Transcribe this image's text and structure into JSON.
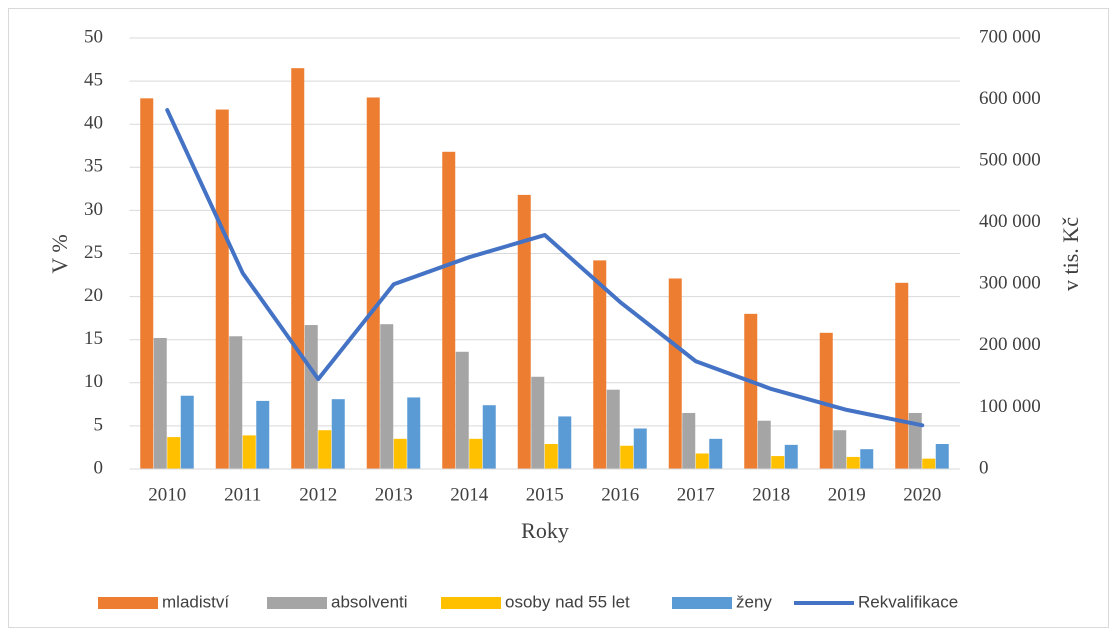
{
  "chart_data": {
    "type": "bar",
    "xlabel": "Roky",
    "ylabel": "V %",
    "y2label": "v tis. Kč",
    "categories": [
      "2010",
      "2011",
      "2012",
      "2013",
      "2014",
      "2015",
      "2016",
      "2017",
      "2018",
      "2019",
      "2020"
    ],
    "series": [
      {
        "name": "mladiství",
        "color": "#ed7d31",
        "values": [
          43,
          41.7,
          46.5,
          43.1,
          36.8,
          31.8,
          24.2,
          22.1,
          18,
          15.8,
          21.6
        ]
      },
      {
        "name": "absolventi",
        "color": "#a5a5a5",
        "values": [
          15.2,
          15.4,
          16.7,
          16.8,
          13.6,
          10.7,
          9.2,
          6.5,
          5.6,
          4.5,
          6.5
        ]
      },
      {
        "name": "osoby nad 55 let",
        "color": "#ffc000",
        "values": [
          3.7,
          3.9,
          4.5,
          3.5,
          3.5,
          2.9,
          2.7,
          1.8,
          1.5,
          1.4,
          1.2
        ]
      },
      {
        "name": "ženy",
        "color": "#5b9bd5",
        "values": [
          8.5,
          7.9,
          8.1,
          8.3,
          7.4,
          6.1,
          4.7,
          3.5,
          2.8,
          2.3,
          2.9
        ]
      },
      {
        "name": "Rekvalifikace",
        "color": "#4472c4",
        "type": "line",
        "axis": "y2",
        "values": [
          583000,
          318000,
          146000,
          300000,
          344000,
          380000,
          271000,
          175000,
          130000,
          96000,
          71000
        ]
      }
    ],
    "ylim": [
      0,
      50
    ],
    "yticks": [
      0,
      5,
      10,
      15,
      20,
      25,
      30,
      35,
      40,
      45,
      50
    ],
    "y2lim": [
      0,
      700000
    ],
    "y2ticks": [
      0,
      {
        "value": 100000,
        "label": "100 000"
      },
      {
        "value": 200000,
        "label": "200 000"
      },
      {
        "value": 300000,
        "label": "300 000"
      },
      {
        "value": 400000,
        "label": "400 000"
      },
      {
        "value": 500000,
        "label": "500 000"
      },
      {
        "value": 600000,
        "label": "600 000"
      },
      {
        "value": 700000,
        "label": "700 000"
      }
    ],
    "grid": true,
    "legend": "bottom"
  }
}
